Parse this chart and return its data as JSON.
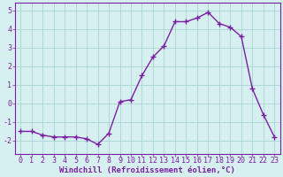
{
  "x": [
    0,
    1,
    2,
    3,
    4,
    5,
    6,
    7,
    8,
    9,
    10,
    11,
    12,
    13,
    14,
    15,
    16,
    17,
    18,
    19,
    20,
    21,
    22,
    23
  ],
  "y": [
    -1.5,
    -1.5,
    -1.7,
    -1.8,
    -1.8,
    -1.8,
    -1.9,
    -2.2,
    -1.6,
    0.1,
    0.2,
    1.5,
    2.5,
    3.1,
    4.4,
    4.4,
    4.6,
    4.9,
    4.3,
    4.1,
    3.6,
    0.8,
    -0.6,
    -1.8
  ],
  "line_color": "#7b1fa2",
  "marker": "+",
  "marker_size": 4,
  "bg_color": "#d6f0f0",
  "grid_color": "#aad4d4",
  "xlabel": "Windchill (Refroidissement éolien,°C)",
  "xlim": [
    -0.5,
    23.5
  ],
  "ylim": [
    -2.7,
    5.4
  ],
  "yticks": [
    -2,
    -1,
    0,
    1,
    2,
    3,
    4,
    5
  ],
  "xticks": [
    0,
    1,
    2,
    3,
    4,
    5,
    6,
    7,
    8,
    9,
    10,
    11,
    12,
    13,
    14,
    15,
    16,
    17,
    18,
    19,
    20,
    21,
    22,
    23
  ],
  "tick_color": "#7b1fa2",
  "label_fontsize": 6.5,
  "tick_fontsize": 6.0,
  "spine_color": "#7b1fa2",
  "linewidth": 1.0,
  "marker_linewidth": 1.0
}
